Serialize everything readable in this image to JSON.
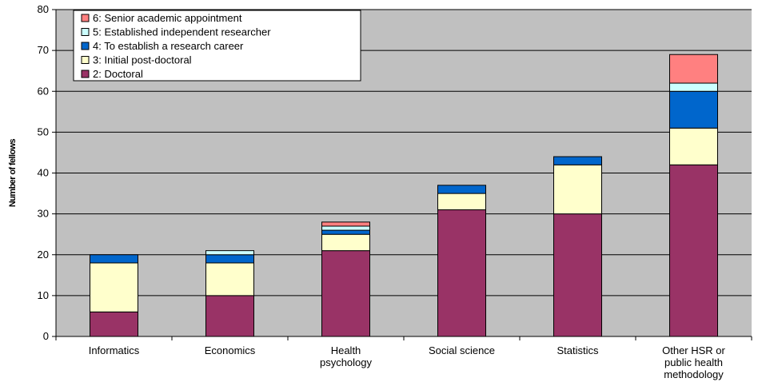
{
  "chart_data": {
    "type": "bar",
    "stacked": true,
    "title": "",
    "xlabel": "",
    "ylabel": "Number of fellows",
    "ylim": [
      0,
      80
    ],
    "yticks": [
      0,
      10,
      20,
      30,
      40,
      50,
      60,
      70,
      80
    ],
    "grid": true,
    "legend_placement": "top-left",
    "categories": [
      [
        "Informatics"
      ],
      [
        "Economics"
      ],
      [
        "Health",
        "psychology"
      ],
      [
        "Social science"
      ],
      [
        "Statistics"
      ],
      [
        "Other HSR or",
        "public health",
        "methodology"
      ]
    ],
    "series": [
      {
        "name": "2: Doctoral",
        "color": "#993366",
        "values": [
          6,
          10,
          21,
          31,
          30,
          42
        ]
      },
      {
        "name": "3: Initial post-doctoral",
        "color": "#FFFFCC",
        "values": [
          12,
          8,
          4,
          4,
          12,
          9
        ]
      },
      {
        "name": "4: To establish a research career",
        "color": "#0066CC",
        "values": [
          2,
          2,
          1,
          2,
          2,
          9
        ]
      },
      {
        "name": "5: Established independent researcher",
        "color": "#CCFFFF",
        "values": [
          0,
          1,
          1,
          0,
          0,
          2
        ]
      },
      {
        "name": "6: Senior academic appointment",
        "color": "#FF8080",
        "values": [
          0,
          0,
          1,
          0,
          0,
          7
        ]
      }
    ],
    "legend_order": [
      "6: Senior academic appointment",
      "5: Established independent researcher",
      "4: To establish a research career",
      "3: Initial post-doctoral",
      "2: Doctoral"
    ],
    "plot_background": "#C0C0C0"
  }
}
